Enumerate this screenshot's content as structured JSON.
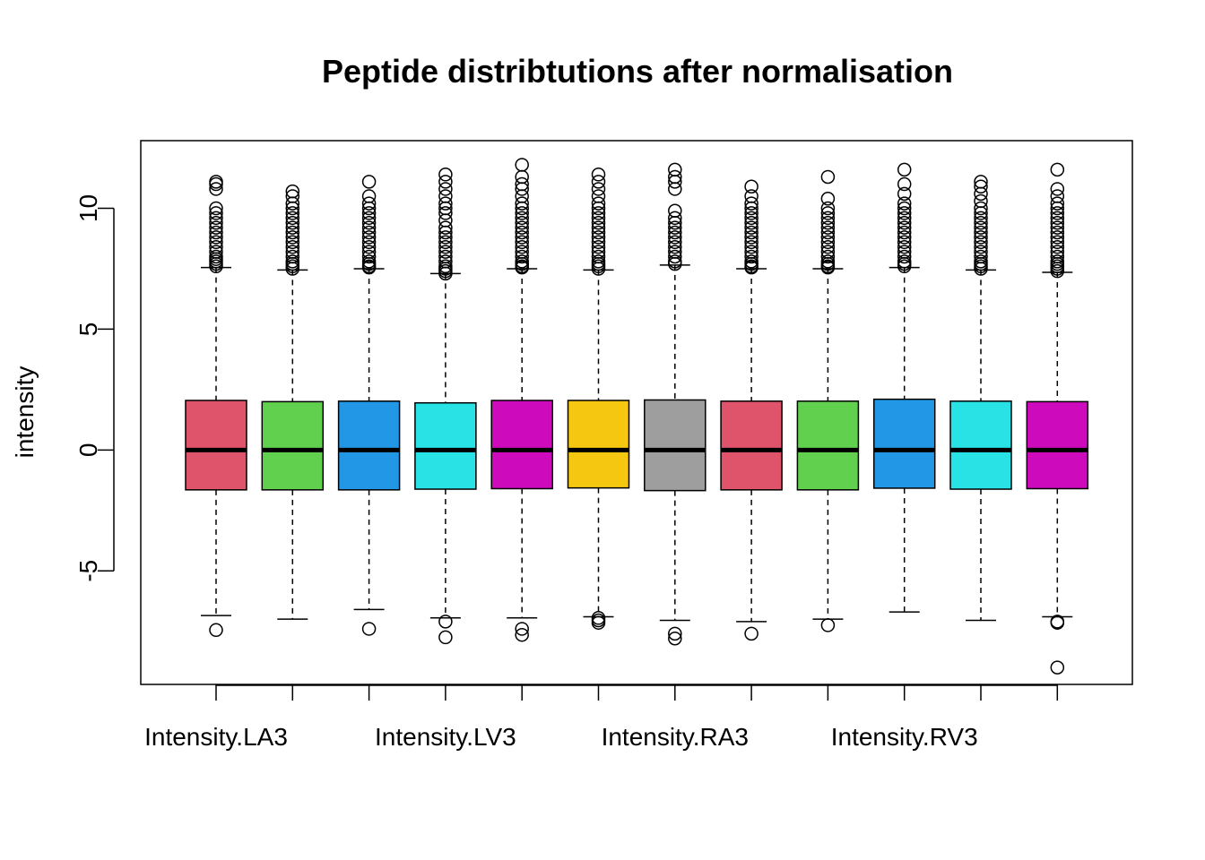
{
  "chart_data": {
    "type": "boxplot",
    "title": "Peptide distribtutions after normalisation",
    "xlabel": "",
    "ylabel": "intensity",
    "ylim": [
      -9.7,
      12.8
    ],
    "yticks": [
      -5,
      0,
      5,
      10
    ],
    "ytick_labels": [
      "-5",
      "0",
      "5",
      "10"
    ],
    "categories": [
      "Intensity.LA3",
      "",
      "",
      "Intensity.LV3",
      "",
      "",
      "Intensity.RA3",
      "",
      "",
      "Intensity.RV3",
      "",
      ""
    ],
    "xtick_labels_shown": [
      {
        "index": 0,
        "label": "Intensity.LA3"
      },
      {
        "index": 3,
        "label": "Intensity.LV3"
      },
      {
        "index": 6,
        "label": "Intensity.RA3"
      },
      {
        "index": 9,
        "label": "Intensity.RV3"
      }
    ],
    "colors": [
      "#DF536B",
      "#61D04F",
      "#2297E6",
      "#28E2E5",
      "#CD0BBC",
      "#F5C710",
      "#9E9E9E",
      "#DF536B",
      "#61D04F",
      "#2297E6",
      "#28E2E5",
      "#CD0BBC"
    ],
    "boxes": [
      {
        "q1": -1.65,
        "median": 0.0,
        "q3": 2.05,
        "whisker_low": -6.85,
        "whisker_high": 7.55,
        "outliers_high": [
          7.6,
          7.7,
          7.8,
          7.9,
          8.0,
          8.2,
          8.4,
          8.6,
          8.8,
          9.0,
          9.2,
          9.4,
          9.6,
          9.8,
          10.0,
          10.8,
          11.0,
          11.1
        ],
        "outliers_low": [
          -7.45
        ]
      },
      {
        "q1": -1.65,
        "median": 0.0,
        "q3": 2.0,
        "whisker_low": -7.0,
        "whisker_high": 7.45,
        "outliers_high": [
          7.5,
          7.6,
          7.7,
          7.8,
          8.0,
          8.2,
          8.4,
          8.6,
          8.8,
          9.0,
          9.2,
          9.4,
          9.6,
          9.8,
          10.0,
          10.2,
          10.5,
          10.7
        ],
        "outliers_low": []
      },
      {
        "q1": -1.65,
        "median": 0.0,
        "q3": 2.02,
        "whisker_low": -6.6,
        "whisker_high": 7.5,
        "outliers_high": [
          7.55,
          7.6,
          7.7,
          7.8,
          8.0,
          8.2,
          8.4,
          8.6,
          8.8,
          9.0,
          9.2,
          9.4,
          9.6,
          9.8,
          10.0,
          10.2,
          10.5,
          11.1
        ],
        "outliers_low": [
          -7.4
        ]
      },
      {
        "q1": -1.62,
        "median": 0.0,
        "q3": 1.95,
        "whisker_low": -6.95,
        "whisker_high": 7.3,
        "outliers_high": [
          7.3,
          7.4,
          7.5,
          7.6,
          7.8,
          8.0,
          8.2,
          8.4,
          8.6,
          8.8,
          9.0,
          9.2,
          9.5,
          9.8,
          10.0,
          10.2,
          10.5,
          10.8,
          11.1,
          11.4
        ],
        "outliers_low": [
          -7.1,
          -7.75
        ]
      },
      {
        "q1": -1.6,
        "median": 0.0,
        "q3": 2.05,
        "whisker_low": -6.95,
        "whisker_high": 7.5,
        "outliers_high": [
          7.55,
          7.6,
          7.7,
          7.8,
          8.0,
          8.2,
          8.4,
          8.6,
          8.8,
          9.0,
          9.2,
          9.4,
          9.6,
          9.8,
          10.0,
          10.2,
          10.5,
          10.8,
          11.0,
          11.3,
          11.8
        ],
        "outliers_low": [
          -7.4,
          -7.65
        ]
      },
      {
        "q1": -1.57,
        "median": 0.0,
        "q3": 2.05,
        "whisker_low": -6.9,
        "whisker_high": 7.45,
        "outliers_high": [
          7.5,
          7.6,
          7.7,
          7.8,
          8.0,
          8.2,
          8.4,
          8.6,
          8.8,
          9.0,
          9.2,
          9.4,
          9.6,
          9.8,
          10.0,
          10.2,
          10.5,
          10.8,
          11.1,
          11.4
        ],
        "outliers_low": [
          -6.95,
          -7.05,
          -7.15
        ]
      },
      {
        "q1": -1.68,
        "median": 0.0,
        "q3": 2.07,
        "whisker_low": -7.05,
        "whisker_high": 7.65,
        "outliers_high": [
          7.7,
          7.8,
          8.0,
          8.2,
          8.4,
          8.6,
          8.8,
          9.0,
          9.2,
          9.4,
          9.6,
          9.9,
          10.8,
          11.1,
          11.3,
          11.6
        ],
        "outliers_low": [
          -7.6,
          -7.8
        ]
      },
      {
        "q1": -1.65,
        "median": 0.0,
        "q3": 2.02,
        "whisker_low": -7.1,
        "whisker_high": 7.5,
        "outliers_high": [
          7.55,
          7.6,
          7.7,
          7.8,
          8.0,
          8.2,
          8.4,
          8.6,
          8.8,
          9.0,
          9.2,
          9.4,
          9.6,
          9.8,
          10.0,
          10.2,
          10.5,
          10.9
        ],
        "outliers_low": [
          -7.6
        ]
      },
      {
        "q1": -1.65,
        "median": 0.0,
        "q3": 2.02,
        "whisker_low": -7.0,
        "whisker_high": 7.5,
        "outliers_high": [
          7.55,
          7.6,
          7.7,
          7.8,
          8.0,
          8.2,
          8.4,
          8.6,
          8.8,
          9.0,
          9.2,
          9.4,
          9.6,
          9.8,
          10.0,
          10.4,
          11.3
        ],
        "outliers_low": [
          -7.25
        ]
      },
      {
        "q1": -1.58,
        "median": 0.0,
        "q3": 2.1,
        "whisker_low": -6.7,
        "whisker_high": 7.55,
        "outliers_high": [
          7.6,
          7.7,
          7.8,
          8.0,
          8.2,
          8.4,
          8.6,
          8.8,
          9.0,
          9.2,
          9.4,
          9.6,
          9.8,
          10.0,
          10.2,
          10.6,
          11.0,
          11.6
        ],
        "outliers_low": []
      },
      {
        "q1": -1.62,
        "median": 0.0,
        "q3": 2.02,
        "whisker_low": -7.05,
        "whisker_high": 7.45,
        "outliers_high": [
          7.5,
          7.6,
          7.7,
          7.8,
          8.0,
          8.2,
          8.4,
          8.6,
          8.8,
          9.0,
          9.2,
          9.4,
          9.6,
          9.8,
          10.0,
          10.3,
          10.6,
          10.9,
          11.1
        ],
        "outliers_low": []
      },
      {
        "q1": -1.6,
        "median": 0.0,
        "q3": 2.0,
        "whisker_low": -6.9,
        "whisker_high": 7.35,
        "outliers_high": [
          7.4,
          7.5,
          7.6,
          7.7,
          7.8,
          8.0,
          8.2,
          8.4,
          8.6,
          8.8,
          9.0,
          9.2,
          9.4,
          9.6,
          9.8,
          10.0,
          10.2,
          10.5,
          10.8,
          11.6
        ],
        "outliers_low": [
          -7.1,
          -7.15,
          -9.0
        ]
      }
    ]
  }
}
